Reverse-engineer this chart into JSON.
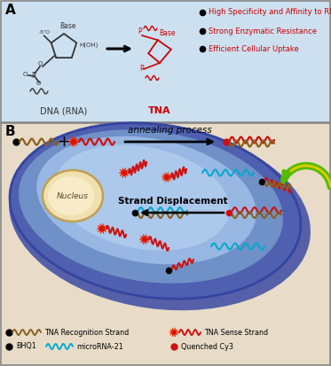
{
  "panel_a_bg": "#cce0f0",
  "panel_b_bg": "#e8dcc8",
  "border_color": "#555555",
  "label_a": "A",
  "label_b": "B",
  "bullet_color": "#1a1a1a",
  "red_text_color": "#cc0000",
  "bullet_texts": [
    "High Specificity and Affinity to RNA",
    "Strong Enzymatic Resistance",
    "Efficient Cellular Uptake"
  ],
  "dna_label": "DNA (RNA)",
  "tna_label": "TNA",
  "annealing_text": "annealing process",
  "strand_disp_text": "Strand Displacement",
  "nucleus_text": "Nucleus",
  "cell_outer_color": "#3a50a0",
  "cell_mid_color": "#6080c8",
  "cell_inner_color": "#8fb0e0",
  "cell_inner2_color": "#b8d0f0",
  "nucleus_color": "#f0e0b0",
  "nucleus_border": "#c8a860",
  "wave_dark_color": "#8B6020",
  "wave_red_color": "#cc1111",
  "wave_cyan_color": "#00aacc",
  "arrow_color": "#111111",
  "green_color": "#55bb00",
  "yellow_color": "#ddcc00",
  "bg_color": "#e8dcc8"
}
